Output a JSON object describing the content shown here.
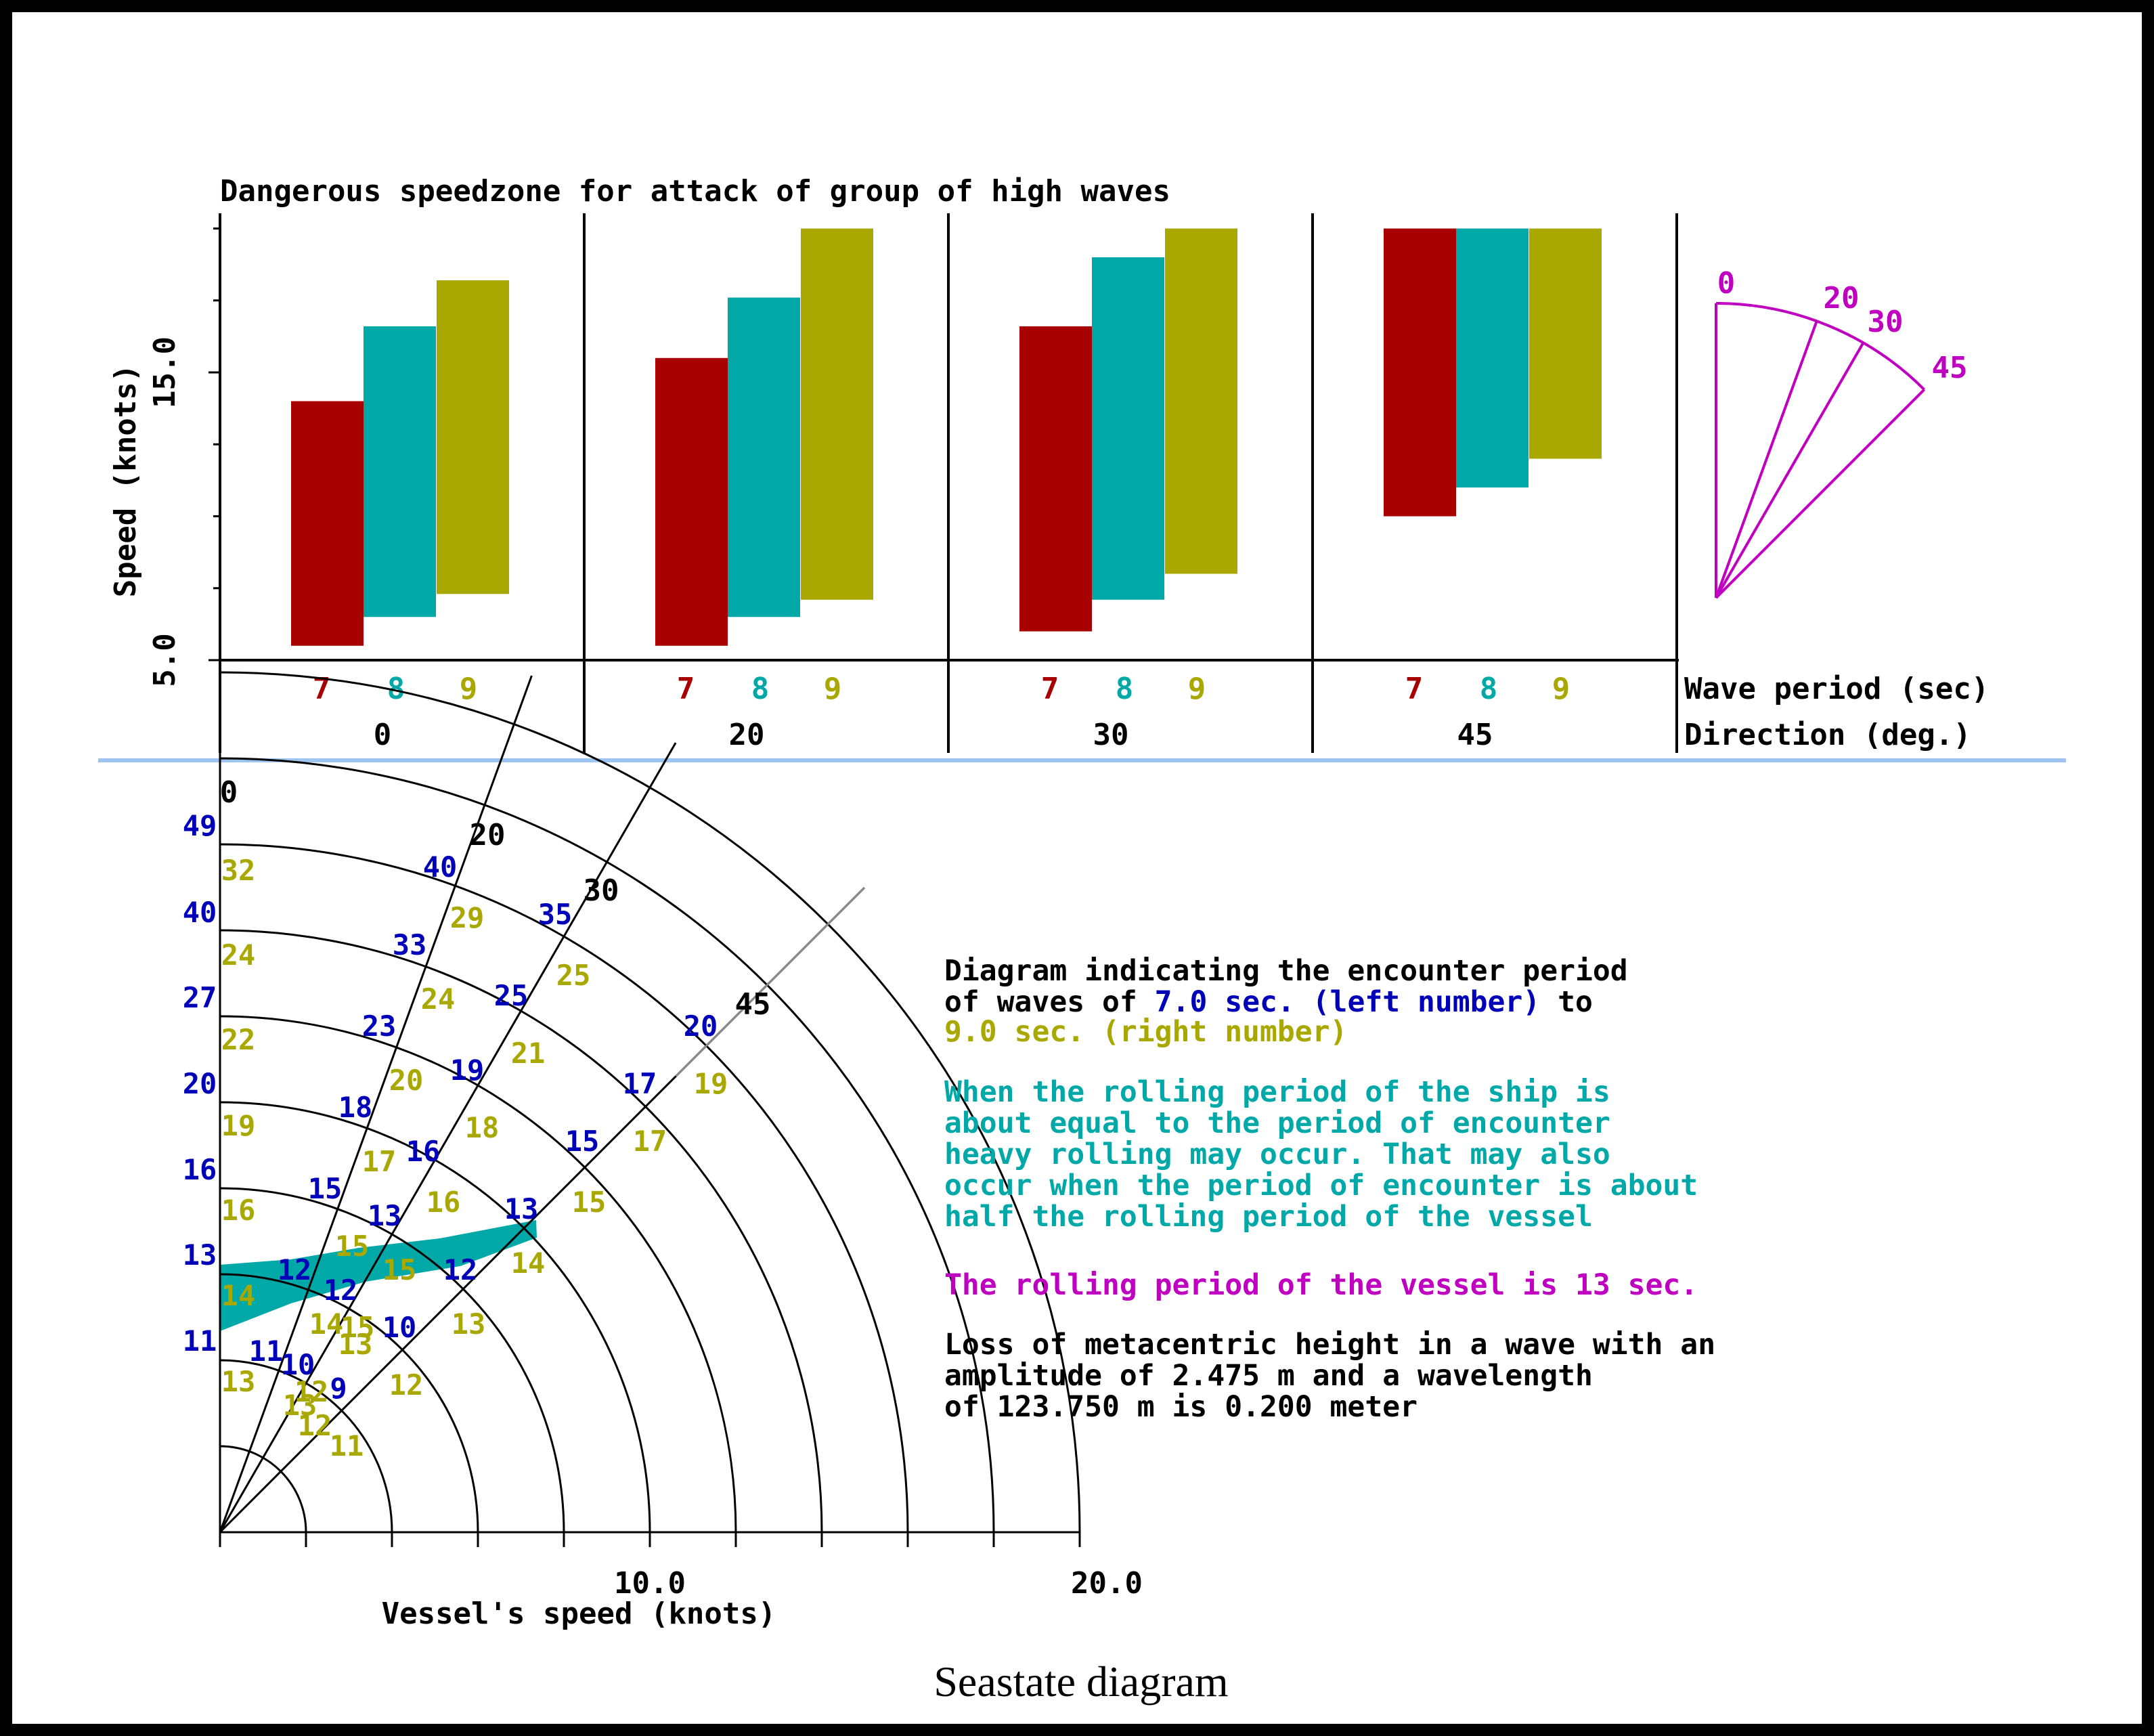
{
  "colors": {
    "p7": "#a80000",
    "p8": "#00a8a8",
    "p9": "#a8a800",
    "blue": "#0000b8",
    "magenta": "#c000c0",
    "teal_zone": "#00a8a8",
    "separator": "#9ec5f0"
  },
  "caption": "Seastate diagram",
  "chart_data": [
    {
      "type": "bar",
      "title": "Dangerous speedzone for attack of group of high waves",
      "ylabel": "Speed (knots)",
      "ytick_labels": [
        "5.0",
        "15.0"
      ],
      "ylim": [
        5,
        20
      ],
      "row_labels": {
        "period": "Wave period (sec)",
        "direction": "Direction (deg.)"
      },
      "periods": [
        "7",
        "8",
        "9"
      ],
      "groups": [
        {
          "direction": "0",
          "bars": [
            [
              5.5,
              14.0
            ],
            [
              6.5,
              16.6
            ],
            [
              7.3,
              18.2
            ]
          ]
        },
        {
          "direction": "20",
          "bars": [
            [
              5.5,
              15.5
            ],
            [
              6.5,
              17.6
            ],
            [
              7.1,
              20.0
            ]
          ]
        },
        {
          "direction": "30",
          "bars": [
            [
              6.0,
              16.6
            ],
            [
              7.1,
              19.0
            ],
            [
              8.0,
              20.0
            ]
          ]
        },
        {
          "direction": "45",
          "bars": [
            [
              10.0,
              20.0
            ],
            [
              11.0,
              20.0
            ],
            [
              12.0,
              20.0
            ]
          ]
        }
      ],
      "legend_fan": [
        "0",
        "20",
        "30",
        "45"
      ]
    },
    {
      "type": "polar",
      "title_lines": [
        "Diagram indicating the encounter period",
        "of waves of "
      ],
      "title_parts": {
        "line1": "Diagram indicating the encounter period",
        "line2_a": "of waves of ",
        "line2_b": "7.0 sec. (left number)",
        "line2_c": " to",
        "line3": "9.0 sec. (right number)"
      },
      "xlabel": "Vessel's speed (knots)",
      "xtick_labels": [
        "10.0",
        "20.0"
      ],
      "xlim": [
        0,
        20
      ],
      "ring_speeds": [
        2,
        4,
        6,
        8,
        10,
        12,
        14,
        16,
        18,
        20
      ],
      "direction_labels": [
        {
          "label": "0",
          "angle": 0
        },
        {
          "label": "20",
          "angle": 20
        },
        {
          "label": "30",
          "angle": 30
        },
        {
          "label": "45",
          "angle": 45
        }
      ],
      "zero_left": [
        "49",
        "40",
        "27",
        "20",
        "16",
        "13",
        "11"
      ],
      "zero_right": [
        "32",
        "24",
        "22",
        "19",
        "16",
        "14",
        "13"
      ],
      "rays": [
        {
          "angle": 20,
          "left": [
            "40",
            "33",
            "23",
            "18",
            "15",
            "12",
            "11",
            "10"
          ],
          "right": [
            "29",
            "24",
            "20",
            "17",
            "15",
            "14",
            "13",
            "12"
          ]
        },
        {
          "angle": 30,
          "left": [
            "35",
            "25",
            "19",
            "16",
            "13",
            "12",
            "10",
            "9"
          ],
          "right": [
            "25",
            "21",
            "18",
            "16",
            "15",
            "15",
            "13",
            "12"
          ]
        },
        {
          "angle": 45,
          "left": [
            "20",
            "17",
            "15",
            "13",
            "12"
          ],
          "right": [
            "19",
            "17",
            "15",
            "14",
            "13",
            "12",
            "11"
          ]
        }
      ],
      "rolling_zone_periods": [
        12,
        14
      ],
      "notes": {
        "rolling": "When the rolling period of the ship is\nabout equal to the period of encounter\nheavy rolling may occur. That may also\noccur when the period of encounter is about\nhalf the rolling period of the vessel",
        "vessel": "The rolling period of the vessel is 13 sec.",
        "metacentric": "Loss of metacentric height in a wave with an\namplitude of 2.475 m and a wavelength\nof 123.750 m is 0.200 meter"
      }
    }
  ]
}
